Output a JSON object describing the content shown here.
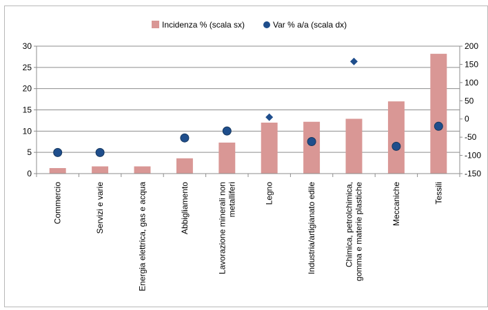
{
  "chart_data": {
    "type": "bar",
    "title": "",
    "xlabel": "",
    "ylabel": "",
    "categories": [
      [
        "Commercio"
      ],
      [
        "Servizi e varie"
      ],
      [
        "Energia elettrica, gas e acqua"
      ],
      [
        "Abbigliamento"
      ],
      [
        "Lavorazione minerali non",
        "metalliferi"
      ],
      [
        "Legno"
      ],
      [
        "Industria/artigianato edile"
      ],
      [
        "Chimica, petrolchimica,",
        "gomma e materie plastiche"
      ],
      [
        "Meccaniche"
      ],
      [
        "Tessili"
      ]
    ],
    "series": [
      {
        "name": "Incidenza % (scala sx)",
        "type": "bar",
        "axis": "left",
        "color": "#d99795",
        "values": [
          1.3,
          1.7,
          1.7,
          3.6,
          7.3,
          12.0,
          12.2,
          12.9,
          17.0,
          28.2
        ]
      },
      {
        "name": "Var % a/a (scala dx)",
        "type": "scatter",
        "axis": "right",
        "color": "#1f4e8c",
        "values": [
          -92,
          -92,
          null,
          -52,
          -33,
          5,
          -62,
          158,
          -75,
          -20
        ]
      }
    ],
    "y_left": {
      "min": 0,
      "max": 30,
      "ticks": [
        0,
        5,
        10,
        15,
        20,
        25,
        30
      ]
    },
    "y_right": {
      "min": -150,
      "max": 200,
      "ticks": [
        -150,
        -100,
        -50,
        0,
        50,
        100,
        150,
        200
      ]
    },
    "grid": true,
    "legend_position": "top"
  }
}
